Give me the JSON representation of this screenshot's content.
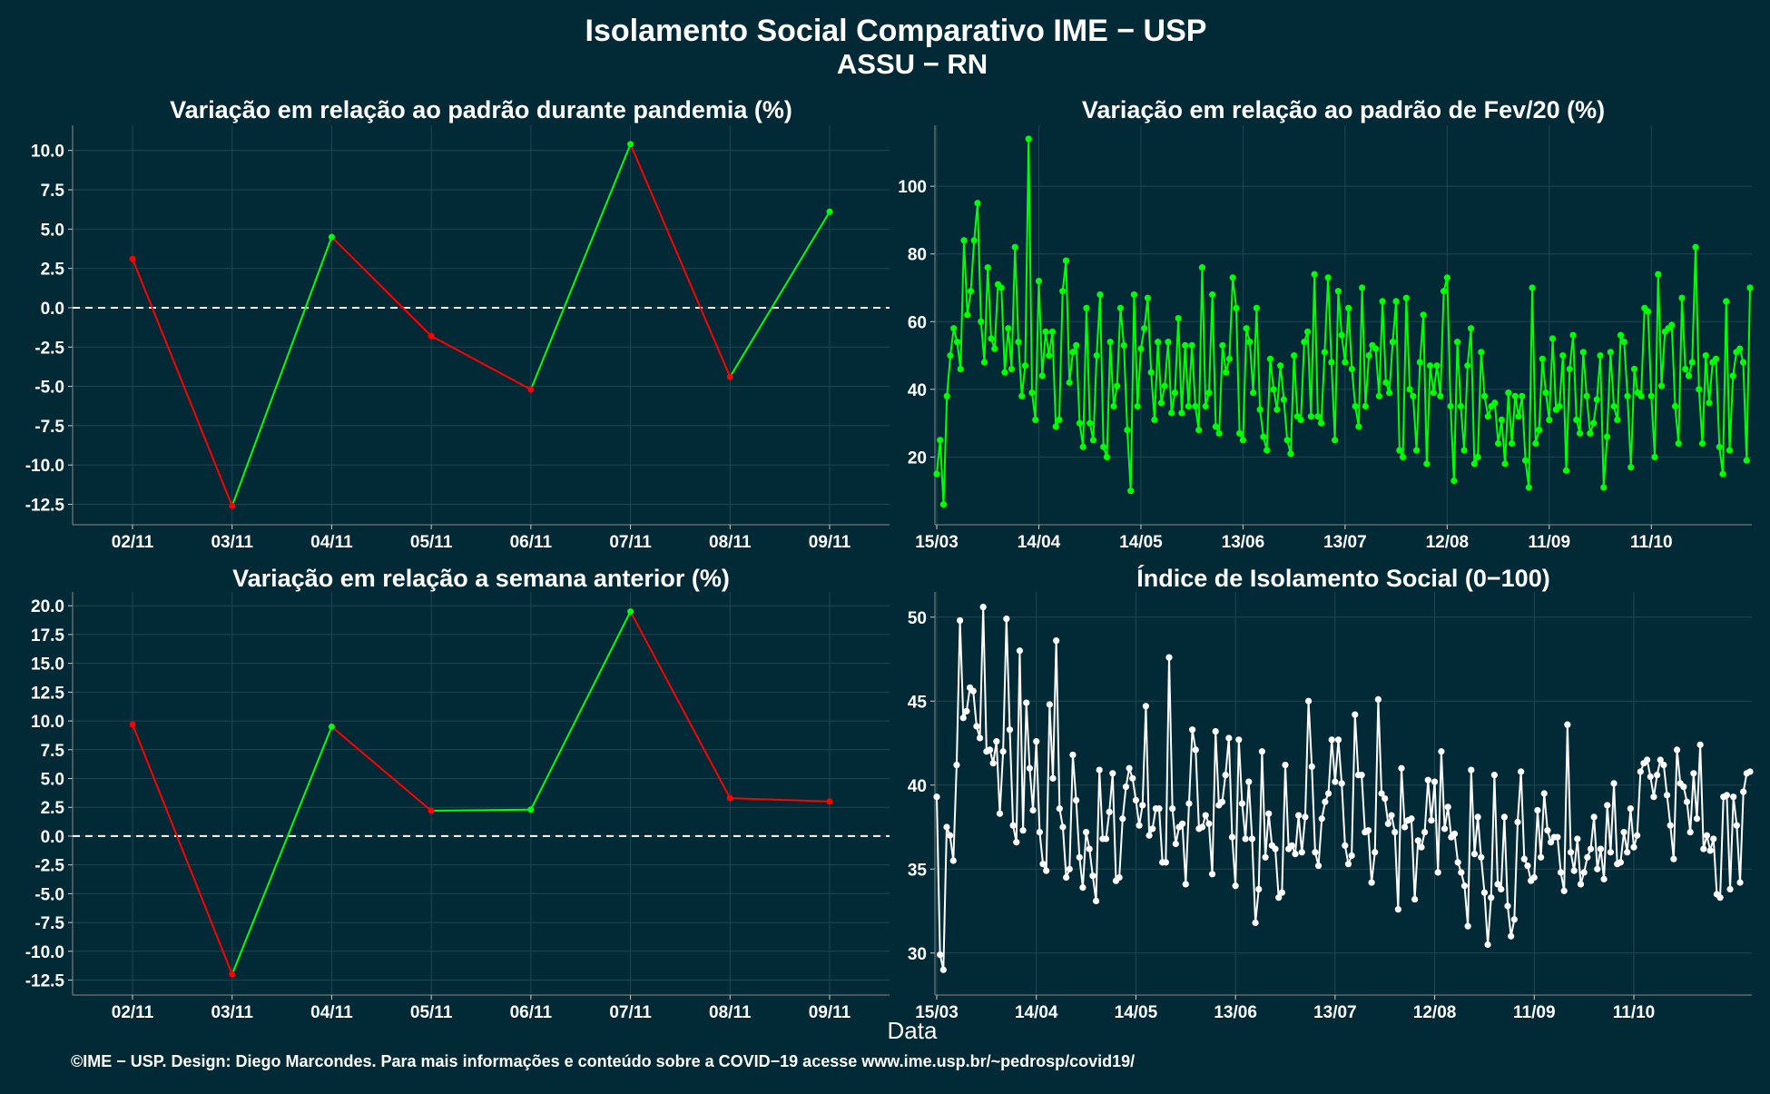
{
  "title": "Isolamento Social Comparativo IME − USP",
  "subtitle": "ASSU − RN",
  "xlabel": "Data",
  "footer": "©IME − USP. Design: Diego Marcondes. Para mais informações e conteúdo sobre a COVID−19 acesse www.ime.usp.br/~pedrosp/covid19/",
  "colors": {
    "background": "#022a36",
    "up": "#00ff00",
    "down": "#ff0000",
    "white": "#ffffff",
    "grid": "#1f4650"
  },
  "chart_data": [
    {
      "type": "line",
      "title": "Variação em relação ao padrão durante pandemia (%)",
      "categories": [
        "02/11",
        "03/11",
        "04/11",
        "05/11",
        "06/11",
        "07/11",
        "08/11",
        "09/11"
      ],
      "values": [
        3.1,
        -12.6,
        4.5,
        -1.8,
        -5.2,
        10.4,
        -4.4,
        6.1
      ],
      "ylim": [
        -13.8,
        11.6
      ],
      "yticks": [
        10.0,
        7.5,
        5.0,
        2.5,
        0.0,
        -2.5,
        -5.0,
        -7.5,
        -10.0,
        -12.5
      ],
      "zero_line": true,
      "colored_segments": true
    },
    {
      "type": "line",
      "title": "Variação em relação ao padrão de Fev/20 (%)",
      "x_start": "15/03",
      "xtick_labels": [
        "15/03",
        "14/04",
        "14/05",
        "13/06",
        "13/07",
        "12/08",
        "11/09",
        "11/10"
      ],
      "ylim": [
        0,
        118
      ],
      "yticks": [
        20,
        40,
        60,
        80,
        100
      ],
      "color": "#00ff00",
      "values": [
        15,
        25,
        6,
        38,
        50,
        58,
        54,
        46,
        84,
        62,
        69,
        84,
        95,
        60,
        48,
        76,
        55,
        52,
        71,
        70,
        45,
        58,
        46,
        82,
        54,
        38,
        47,
        114,
        39,
        31,
        72,
        44,
        57,
        50,
        57,
        29,
        31,
        69,
        78,
        42,
        51,
        53,
        30,
        23,
        64,
        30,
        25,
        50,
        68,
        23,
        20,
        54,
        35,
        41,
        64,
        53,
        28,
        10,
        68,
        35,
        52,
        58,
        67,
        45,
        31,
        54,
        36,
        41,
        54,
        33,
        39,
        61,
        33,
        53,
        35,
        53,
        35,
        28,
        76,
        35,
        39,
        68,
        29,
        27,
        53,
        45,
        49,
        73,
        64,
        27,
        25,
        58,
        54,
        39,
        64,
        34,
        26,
        22,
        49,
        40,
        34,
        47,
        37,
        25,
        21,
        50,
        32,
        31,
        54,
        57,
        32,
        74,
        32,
        30,
        51,
        73,
        48,
        25,
        69,
        56,
        48,
        64,
        46,
        35,
        29,
        70,
        35,
        50,
        53,
        52,
        38,
        66,
        42,
        39,
        54,
        66,
        22,
        20,
        67,
        40,
        38,
        22,
        48,
        62,
        18,
        47,
        39,
        47,
        38,
        69,
        73,
        35,
        13,
        54,
        35,
        22,
        47,
        58,
        18,
        20,
        51,
        38,
        32,
        35,
        36,
        24,
        31,
        18,
        39,
        24,
        38,
        32,
        38,
        19,
        11,
        70,
        24,
        28,
        49,
        39,
        31,
        55,
        34,
        35,
        50,
        16,
        46,
        56,
        31,
        27,
        51,
        38,
        27,
        30,
        37,
        50,
        11,
        26,
        51,
        35,
        31,
        56,
        54,
        38,
        17,
        46,
        39,
        38,
        64,
        63,
        38,
        20,
        74,
        41,
        57,
        58,
        59,
        35,
        24,
        67,
        46,
        44,
        48,
        82,
        40,
        24,
        50,
        36,
        48,
        49,
        23,
        15,
        66,
        22,
        44,
        51,
        52,
        48,
        19,
        70
      ]
    },
    {
      "type": "line",
      "title": "Variação em relação a semana anterior (%)",
      "categories": [
        "02/11",
        "03/11",
        "04/11",
        "05/11",
        "06/11",
        "07/11",
        "08/11",
        "09/11"
      ],
      "values": [
        9.7,
        -12.0,
        9.5,
        2.2,
        2.3,
        19.5,
        3.3,
        3.0
      ],
      "ylim": [
        -13.8,
        21.2
      ],
      "yticks": [
        20.0,
        17.5,
        15.0,
        12.5,
        10.0,
        7.5,
        5.0,
        2.5,
        0.0,
        -2.5,
        -5.0,
        -7.5,
        -10.0,
        -12.5
      ],
      "zero_line": true,
      "colored_segments": true
    },
    {
      "type": "line",
      "title": "Índice de Isolamento Social (0−100)",
      "x_start": "15/03",
      "xtick_labels": [
        "15/03",
        "14/04",
        "14/05",
        "13/06",
        "13/07",
        "12/08",
        "11/09",
        "11/10"
      ],
      "ylim": [
        27.5,
        51.5
      ],
      "yticks": [
        30,
        35,
        40,
        45,
        50
      ],
      "color": "#ffffff",
      "values": [
        39.3,
        29.9,
        29.0,
        37.5,
        37.0,
        35.5,
        41.2,
        49.8,
        44.0,
        44.4,
        45.8,
        45.6,
        43.5,
        42.8,
        50.6,
        42.0,
        42.1,
        41.3,
        42.6,
        38.3,
        42.0,
        49.9,
        43.3,
        37.6,
        36.6,
        48.0,
        37.3,
        44.9,
        41.0,
        38.5,
        42.6,
        37.2,
        35.3,
        34.9,
        44.8,
        40.4,
        48.6,
        38.6,
        37.5,
        34.5,
        35.0,
        41.8,
        39.1,
        35.7,
        33.9,
        37.2,
        36.2,
        34.6,
        33.1,
        40.9,
        36.8,
        36.8,
        38.4,
        40.7,
        34.3,
        34.5,
        38.0,
        39.9,
        41.0,
        40.4,
        39.1,
        37.6,
        38.8,
        44.7,
        37.0,
        37.4,
        38.6,
        38.6,
        35.4,
        35.4,
        47.6,
        38.6,
        36.5,
        37.5,
        37.7,
        34.1,
        38.9,
        43.3,
        42.1,
        37.4,
        37.5,
        38.2,
        37.7,
        34.7,
        43.2,
        38.8,
        39.0,
        40.6,
        42.8,
        36.9,
        34.0,
        42.7,
        38.9,
        36.8,
        40.2,
        36.8,
        31.8,
        33.8,
        42.0,
        35.7,
        38.3,
        36.4,
        36.2,
        33.3,
        33.6,
        41.2,
        36.2,
        36.4,
        35.9,
        38.2,
        36.0,
        38.1,
        45.0,
        41.1,
        36.0,
        35.2,
        38.0,
        39.0,
        39.5,
        42.7,
        40.2,
        42.7,
        40.1,
        36.4,
        35.3,
        35.8,
        44.2,
        40.6,
        40.6,
        37.2,
        37.3,
        34.2,
        36.0,
        45.1,
        39.5,
        39.2,
        37.7,
        38.2,
        37.2,
        32.6,
        41.0,
        37.5,
        37.9,
        38.0,
        33.2,
        36.7,
        36.3,
        37.2,
        40.3,
        37.9,
        40.2,
        34.8,
        42.0,
        37.4,
        38.7,
        36.9,
        37.1,
        35.4,
        34.8,
        34.0,
        31.6,
        40.9,
        35.9,
        38.1,
        35.7,
        33.6,
        30.5,
        33.3,
        40.6,
        34.1,
        33.8,
        38.1,
        32.8,
        31.0,
        32.0,
        37.8,
        40.8,
        35.6,
        35.2,
        34.3,
        34.5,
        38.5,
        35.7,
        39.5,
        37.3,
        36.6,
        36.9,
        36.9,
        34.8,
        33.7,
        43.6,
        36.0,
        34.9,
        36.8,
        34.1,
        34.8,
        35.7,
        36.2,
        38.1,
        35.0,
        36.2,
        34.4,
        38.8,
        36.0,
        40.1,
        35.3,
        35.4,
        37.2,
        36.0,
        38.6,
        36.3,
        37.0,
        40.8,
        41.3,
        41.5,
        40.5,
        39.3,
        40.6,
        41.5,
        41.2,
        39.4,
        37.6,
        35.6,
        42.1,
        40.1,
        39.9,
        39.0,
        37.2,
        40.7,
        38.0,
        42.4,
        36.2,
        37.0,
        36.1,
        36.8,
        33.5,
        33.3,
        39.3,
        39.4,
        33.8,
        39.3,
        37.6,
        34.2,
        39.6,
        40.7,
        40.8
      ]
    }
  ]
}
